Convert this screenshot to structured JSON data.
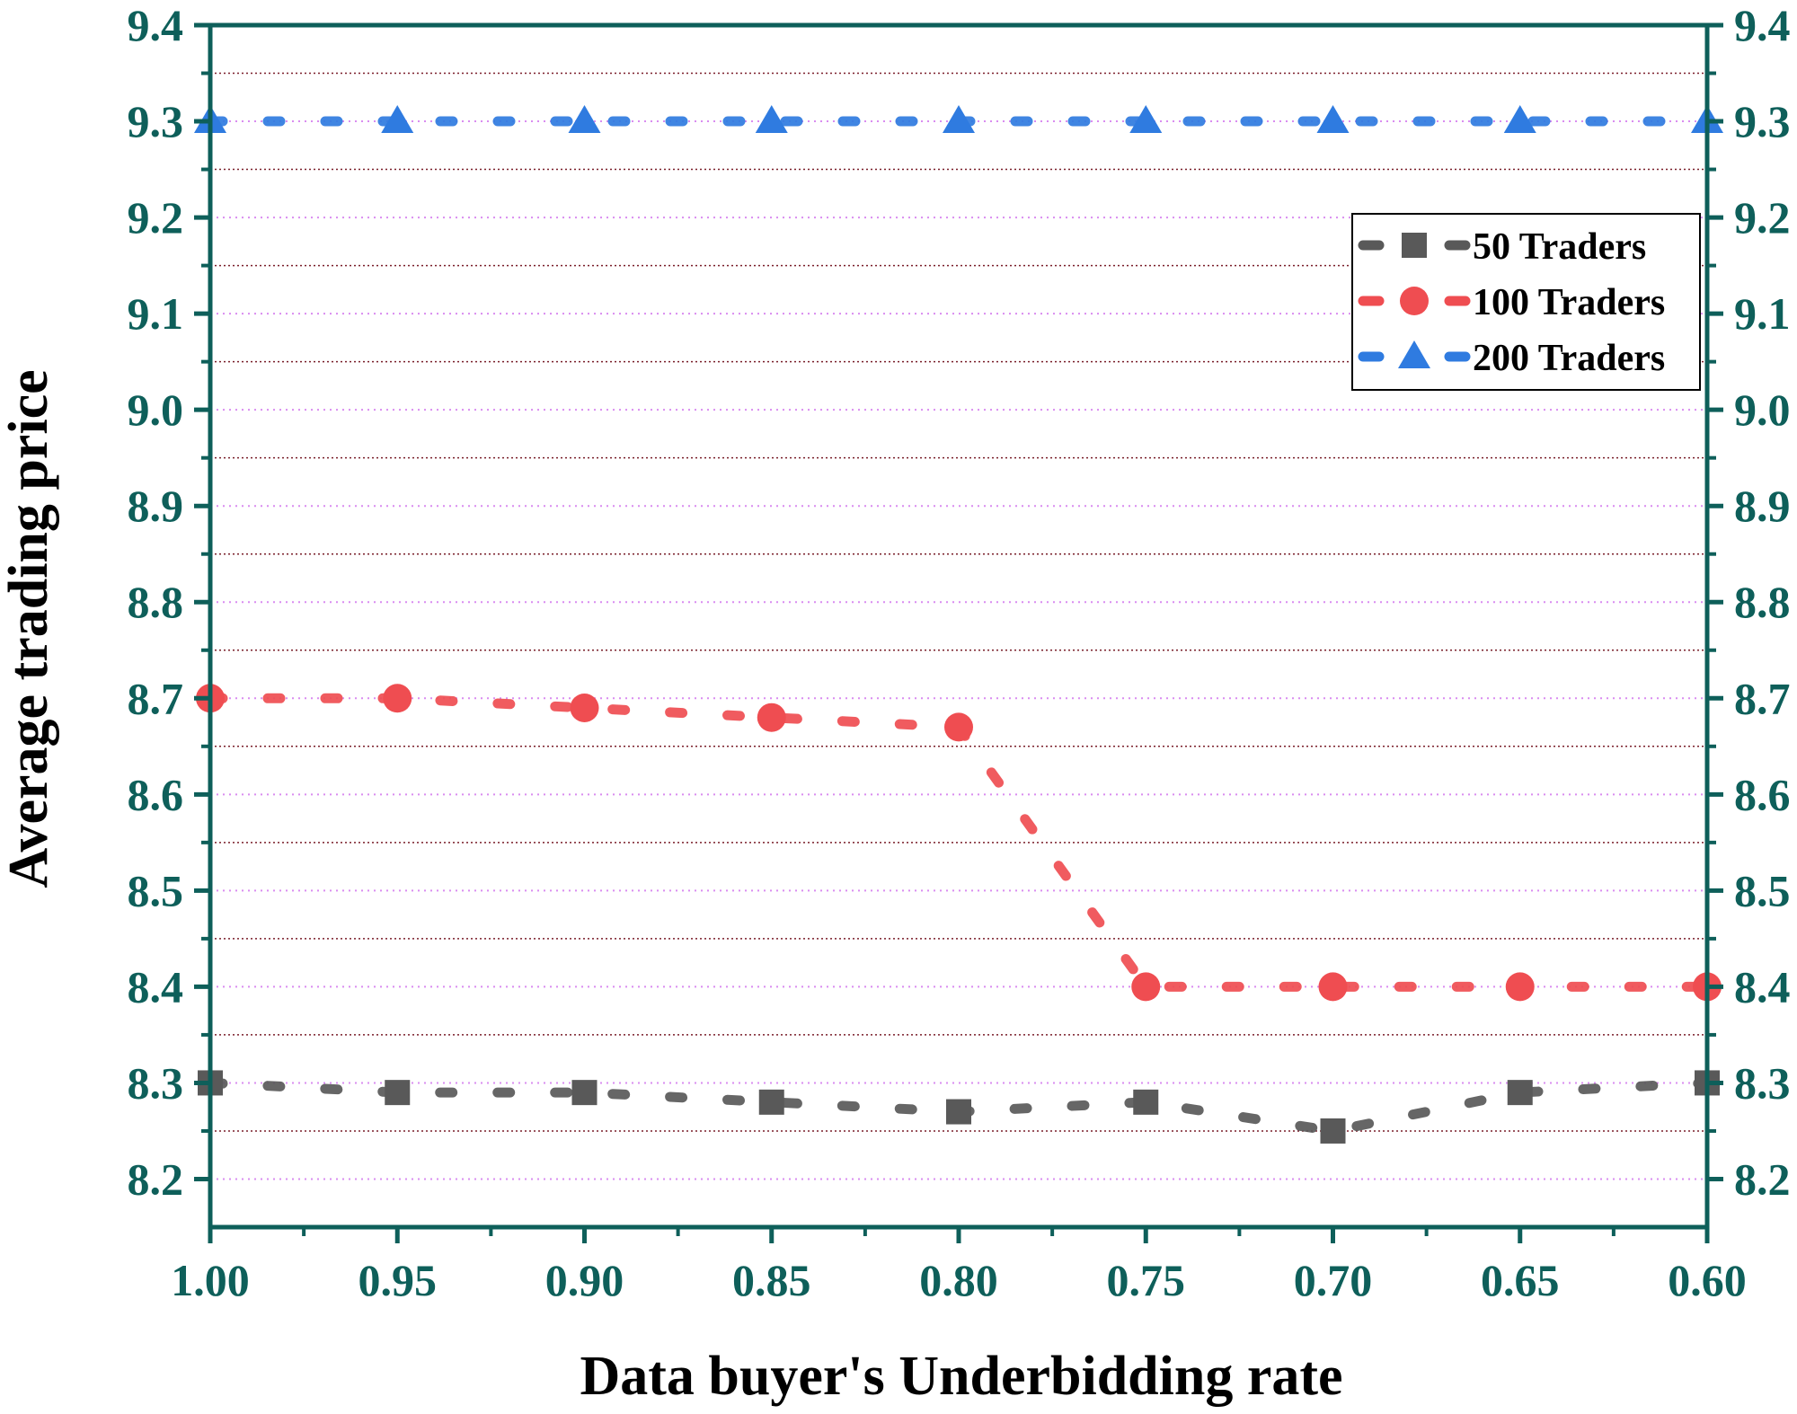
{
  "colors": {
    "axis": "#0e5f5a",
    "grid_major": "#d98cf0",
    "grid_minor": "#7a1f2a",
    "series_50": "#595959",
    "series_100": "#ef4d51",
    "series_200": "#2f7be0",
    "legend_border": "#000000"
  },
  "chart_data": {
    "type": "line",
    "title": "",
    "xlabel": "Data buyer's Underbidding rate",
    "ylabel": "Average trading price",
    "xlim": [
      1.0,
      0.6
    ],
    "ylim": [
      8.15,
      9.4
    ],
    "x_reversed": true,
    "grid": true,
    "legend_position": "top-right",
    "x": [
      1.0,
      0.95,
      0.9,
      0.85,
      0.8,
      0.75,
      0.7,
      0.65,
      0.6
    ],
    "x_tick_labels": [
      "1.00",
      "0.95",
      "0.90",
      "0.85",
      "0.80",
      "0.75",
      "0.70",
      "0.65",
      "0.60"
    ],
    "y_ticks": [
      8.2,
      8.3,
      8.4,
      8.5,
      8.6,
      8.7,
      8.8,
      8.9,
      9.0,
      9.1,
      9.2,
      9.3,
      9.4
    ],
    "y_tick_labels": [
      "8.2",
      "8.3",
      "8.4",
      "8.5",
      "8.6",
      "8.7",
      "8.8",
      "8.9",
      "9.0",
      "9.1",
      "9.2",
      "9.3",
      "9.4"
    ],
    "series": [
      {
        "name": "50 Traders",
        "marker": "square",
        "color_key": "series_50",
        "values": [
          8.3,
          8.29,
          8.29,
          8.28,
          8.27,
          8.28,
          8.25,
          8.29,
          8.3
        ]
      },
      {
        "name": "100 Traders",
        "marker": "circle",
        "color_key": "series_100",
        "values": [
          8.7,
          8.7,
          8.69,
          8.68,
          8.67,
          8.4,
          8.4,
          8.4,
          8.4
        ]
      },
      {
        "name": "200 Traders",
        "marker": "triangle",
        "color_key": "series_200",
        "values": [
          9.3,
          9.3,
          9.3,
          9.3,
          9.3,
          9.3,
          9.3,
          9.3,
          9.3
        ]
      }
    ]
  }
}
